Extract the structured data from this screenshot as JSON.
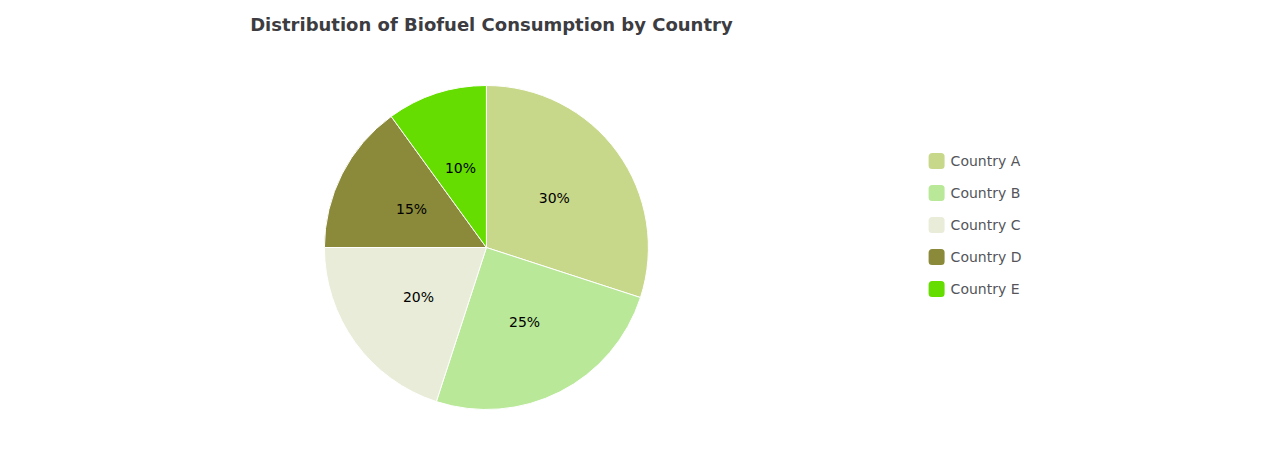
{
  "chart_data": {
    "type": "pie",
    "title": "Distribution of Biofuel Consumption by Country",
    "categories": [
      "Country A",
      "Country B",
      "Country C",
      "Country D",
      "Country E"
    ],
    "values": [
      30,
      25,
      20,
      15,
      10
    ],
    "value_labels": [
      "30%",
      "25%",
      "20%",
      "15%",
      "10%"
    ],
    "data_labels": true,
    "colors": [
      "#c8d88a",
      "#b8e898",
      "#e8ecd8",
      "#8b8a3a",
      "#66dd00"
    ],
    "legend": "right"
  }
}
